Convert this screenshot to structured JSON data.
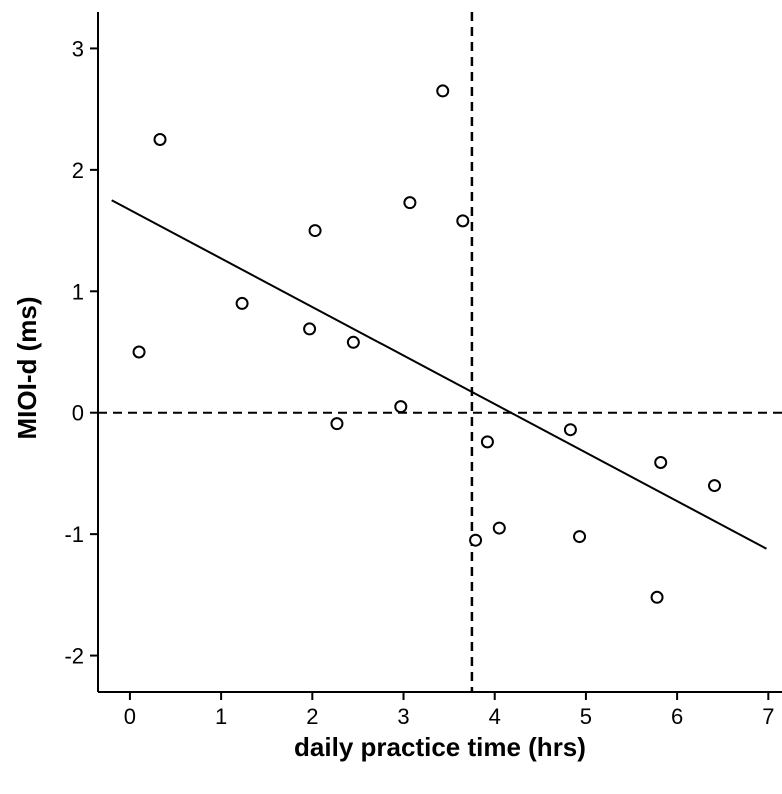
{
  "chart_data": {
    "type": "scatter",
    "title": "",
    "xlabel": "daily practice time (hrs)",
    "ylabel": "MIOI-d (ms)",
    "xlim": [
      -0.35,
      7.15
    ],
    "ylim": [
      -2.3,
      3.3
    ],
    "x_ticks": [
      0,
      1,
      2,
      3,
      4,
      5,
      6,
      7
    ],
    "y_ticks": [
      -2,
      -1,
      0,
      1,
      2,
      3
    ],
    "x_tick_labels": [
      "0",
      "1",
      "2",
      "3",
      "4",
      "5",
      "6",
      "7"
    ],
    "y_tick_labels": [
      "-2",
      "-1",
      "0",
      "1",
      "2",
      "3"
    ],
    "grid": false,
    "legend": "none",
    "points": [
      {
        "x": 0.1,
        "y": 0.5
      },
      {
        "x": 0.33,
        "y": 2.25
      },
      {
        "x": 1.23,
        "y": 0.9
      },
      {
        "x": 1.97,
        "y": 0.69
      },
      {
        "x": 2.03,
        "y": 1.5
      },
      {
        "x": 2.27,
        "y": -0.09
      },
      {
        "x": 2.45,
        "y": 0.58
      },
      {
        "x": 2.97,
        "y": 0.05
      },
      {
        "x": 3.07,
        "y": 1.73
      },
      {
        "x": 3.43,
        "y": 2.65
      },
      {
        "x": 3.65,
        "y": 1.58
      },
      {
        "x": 3.79,
        "y": -1.05
      },
      {
        "x": 3.92,
        "y": -0.24
      },
      {
        "x": 4.05,
        "y": -0.95
      },
      {
        "x": 4.83,
        "y": -0.14
      },
      {
        "x": 4.93,
        "y": -1.02
      },
      {
        "x": 5.78,
        "y": -1.52
      },
      {
        "x": 5.82,
        "y": -0.41
      },
      {
        "x": 6.41,
        "y": -0.6
      }
    ],
    "fit_line": {
      "x": [
        -0.2,
        6.98
      ],
      "y": [
        1.75,
        -1.12
      ]
    },
    "reference_lines": {
      "vertical_x": 3.75,
      "horizontal_y": 0
    },
    "colors": {
      "marks": "#000000",
      "background": "#ffffff"
    }
  }
}
